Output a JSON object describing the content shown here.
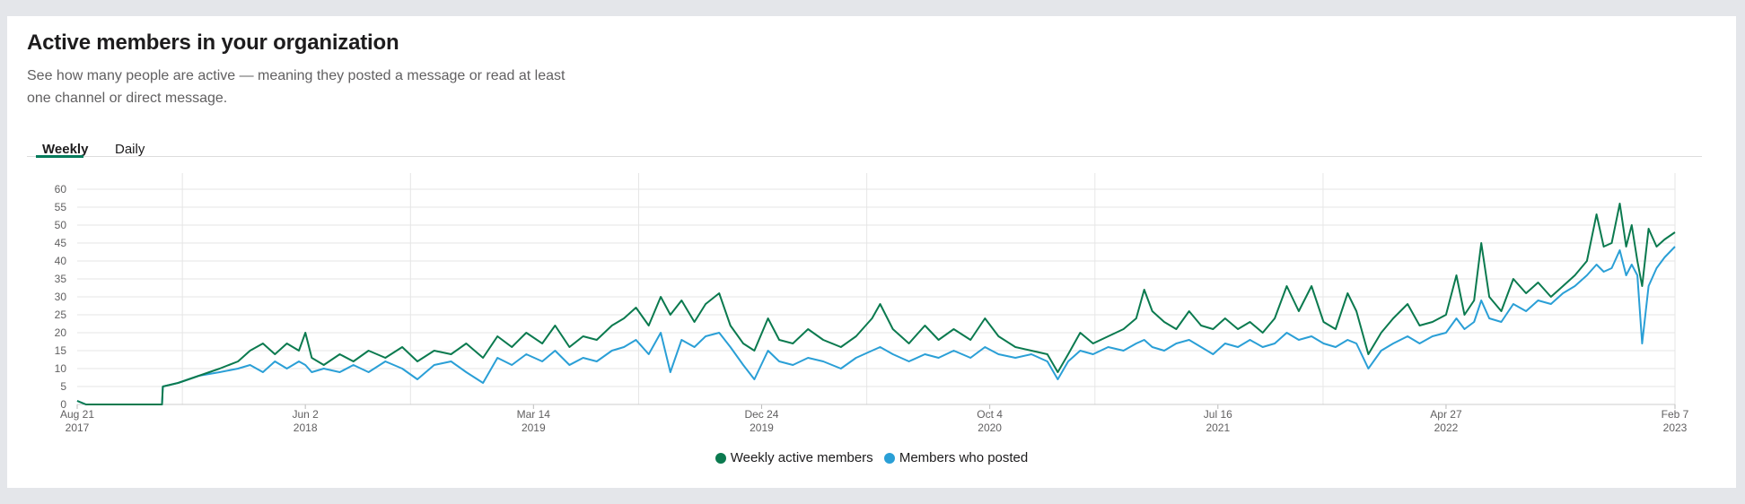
{
  "card": {
    "title": "Active members in your organization",
    "description": "See how many people are active — meaning they posted a message or read at least one channel or direct message."
  },
  "tabs": [
    {
      "label": "Weekly",
      "selected": true
    },
    {
      "label": "Daily",
      "selected": false
    }
  ],
  "colors": {
    "accent": "#007a5a",
    "series_green": "#0b7a4f",
    "series_blue": "#2a9fd6"
  },
  "chart_data": {
    "type": "line",
    "title": "",
    "xlabel": "",
    "ylabel": "",
    "ylim": [
      0,
      62
    ],
    "yticks": [
      0,
      5,
      10,
      15,
      20,
      25,
      30,
      35,
      40,
      45,
      50,
      55,
      60
    ],
    "xlim": [
      "2017-08-21",
      "2023-02-07"
    ],
    "xticks": [
      {
        "date": "2017-08-21",
        "line1": "Aug 21",
        "line2": "2017"
      },
      {
        "date": "2018-06-02",
        "line1": "Jun 2",
        "line2": "2018"
      },
      {
        "date": "2019-03-14",
        "line1": "Mar 14",
        "line2": "2019"
      },
      {
        "date": "2019-12-24",
        "line1": "Dec 24",
        "line2": "2019"
      },
      {
        "date": "2020-10-04",
        "line1": "Oct 4",
        "line2": "2020"
      },
      {
        "date": "2021-07-16",
        "line1": "Jul 16",
        "line2": "2021"
      },
      {
        "date": "2022-04-27",
        "line1": "Apr 27",
        "line2": "2022"
      },
      {
        "date": "2023-02-07",
        "line1": "Feb 7",
        "line2": "2023"
      }
    ],
    "grid": true,
    "legend_position": "bottom",
    "series": [
      {
        "name": "Weekly active members",
        "color": "#0b7a4f",
        "points": [
          [
            "2017-08-21",
            1
          ],
          [
            "2017-09-01",
            0
          ],
          [
            "2017-11-15",
            0
          ],
          [
            "2017-12-05",
            0
          ],
          [
            "2017-12-06",
            5
          ],
          [
            "2017-12-25",
            6
          ],
          [
            "2018-01-20",
            8
          ],
          [
            "2018-02-15",
            10
          ],
          [
            "2018-03-10",
            12
          ],
          [
            "2018-03-25",
            15
          ],
          [
            "2018-04-10",
            17
          ],
          [
            "2018-04-25",
            14
          ],
          [
            "2018-05-10",
            17
          ],
          [
            "2018-05-25",
            15
          ],
          [
            "2018-06-02",
            20
          ],
          [
            "2018-06-10",
            13
          ],
          [
            "2018-06-25",
            11
          ],
          [
            "2018-07-15",
            14
          ],
          [
            "2018-08-01",
            12
          ],
          [
            "2018-08-20",
            15
          ],
          [
            "2018-09-10",
            13
          ],
          [
            "2018-10-01",
            16
          ],
          [
            "2018-10-20",
            12
          ],
          [
            "2018-11-10",
            15
          ],
          [
            "2018-12-01",
            14
          ],
          [
            "2018-12-20",
            17
          ],
          [
            "2019-01-10",
            13
          ],
          [
            "2019-01-28",
            19
          ],
          [
            "2019-02-15",
            16
          ],
          [
            "2019-03-05",
            20
          ],
          [
            "2019-03-25",
            17
          ],
          [
            "2019-04-10",
            22
          ],
          [
            "2019-04-28",
            16
          ],
          [
            "2019-05-15",
            19
          ],
          [
            "2019-06-01",
            18
          ],
          [
            "2019-06-20",
            22
          ],
          [
            "2019-07-05",
            24
          ],
          [
            "2019-07-20",
            27
          ],
          [
            "2019-08-05",
            22
          ],
          [
            "2019-08-20",
            30
          ],
          [
            "2019-09-01",
            25
          ],
          [
            "2019-09-15",
            29
          ],
          [
            "2019-10-01",
            23
          ],
          [
            "2019-10-15",
            28
          ],
          [
            "2019-11-01",
            31
          ],
          [
            "2019-11-15",
            22
          ],
          [
            "2019-12-01",
            17
          ],
          [
            "2019-12-15",
            15
          ],
          [
            "2020-01-01",
            24
          ],
          [
            "2020-01-15",
            18
          ],
          [
            "2020-02-01",
            17
          ],
          [
            "2020-02-20",
            21
          ],
          [
            "2020-03-10",
            18
          ],
          [
            "2020-04-01",
            16
          ],
          [
            "2020-04-20",
            19
          ],
          [
            "2020-05-10",
            24
          ],
          [
            "2020-05-20",
            28
          ],
          [
            "2020-06-05",
            21
          ],
          [
            "2020-06-25",
            17
          ],
          [
            "2020-07-15",
            22
          ],
          [
            "2020-08-01",
            18
          ],
          [
            "2020-08-20",
            21
          ],
          [
            "2020-09-10",
            18
          ],
          [
            "2020-09-28",
            24
          ],
          [
            "2020-10-15",
            19
          ],
          [
            "2020-11-05",
            16
          ],
          [
            "2020-11-25",
            15
          ],
          [
            "2020-12-15",
            14
          ],
          [
            "2020-12-28",
            9
          ],
          [
            "2021-01-10",
            14
          ],
          [
            "2021-01-25",
            20
          ],
          [
            "2021-02-10",
            17
          ],
          [
            "2021-03-01",
            19
          ],
          [
            "2021-03-20",
            21
          ],
          [
            "2021-04-05",
            24
          ],
          [
            "2021-04-15",
            32
          ],
          [
            "2021-04-25",
            26
          ],
          [
            "2021-05-10",
            23
          ],
          [
            "2021-05-25",
            21
          ],
          [
            "2021-06-10",
            26
          ],
          [
            "2021-06-25",
            22
          ],
          [
            "2021-07-10",
            21
          ],
          [
            "2021-07-25",
            24
          ],
          [
            "2021-08-10",
            21
          ],
          [
            "2021-08-25",
            23
          ],
          [
            "2021-09-10",
            20
          ],
          [
            "2021-09-25",
            24
          ],
          [
            "2021-10-10",
            33
          ],
          [
            "2021-10-25",
            26
          ],
          [
            "2021-11-10",
            33
          ],
          [
            "2021-11-25",
            23
          ],
          [
            "2021-12-10",
            21
          ],
          [
            "2021-12-25",
            31
          ],
          [
            "2022-01-05",
            26
          ],
          [
            "2022-01-20",
            14
          ],
          [
            "2022-02-05",
            20
          ],
          [
            "2022-02-20",
            24
          ],
          [
            "2022-03-10",
            28
          ],
          [
            "2022-03-25",
            22
          ],
          [
            "2022-04-10",
            23
          ],
          [
            "2022-04-27",
            25
          ],
          [
            "2022-05-10",
            36
          ],
          [
            "2022-05-20",
            25
          ],
          [
            "2022-06-01",
            29
          ],
          [
            "2022-06-10",
            45
          ],
          [
            "2022-06-20",
            30
          ],
          [
            "2022-07-05",
            26
          ],
          [
            "2022-07-20",
            35
          ],
          [
            "2022-08-05",
            31
          ],
          [
            "2022-08-20",
            34
          ],
          [
            "2022-09-05",
            30
          ],
          [
            "2022-09-20",
            33
          ],
          [
            "2022-10-05",
            36
          ],
          [
            "2022-10-20",
            40
          ],
          [
            "2022-11-01",
            53
          ],
          [
            "2022-11-10",
            44
          ],
          [
            "2022-11-20",
            45
          ],
          [
            "2022-11-30",
            56
          ],
          [
            "2022-12-08",
            44
          ],
          [
            "2022-12-15",
            50
          ],
          [
            "2022-12-22",
            40
          ],
          [
            "2022-12-28",
            33
          ],
          [
            "2023-01-05",
            49
          ],
          [
            "2023-01-15",
            44
          ],
          [
            "2023-01-25",
            46
          ],
          [
            "2023-02-07",
            48
          ]
        ]
      },
      {
        "name": "Members who posted",
        "color": "#2a9fd6",
        "points": [
          [
            "2017-08-21",
            1
          ],
          [
            "2017-09-01",
            0
          ],
          [
            "2017-11-15",
            0
          ],
          [
            "2017-12-05",
            0
          ],
          [
            "2017-12-06",
            5
          ],
          [
            "2017-12-25",
            6
          ],
          [
            "2018-01-20",
            8
          ],
          [
            "2018-02-15",
            9
          ],
          [
            "2018-03-10",
            10
          ],
          [
            "2018-03-25",
            11
          ],
          [
            "2018-04-10",
            9
          ],
          [
            "2018-04-25",
            12
          ],
          [
            "2018-05-10",
            10
          ],
          [
            "2018-05-25",
            12
          ],
          [
            "2018-06-02",
            11
          ],
          [
            "2018-06-10",
            9
          ],
          [
            "2018-06-25",
            10
          ],
          [
            "2018-07-15",
            9
          ],
          [
            "2018-08-01",
            11
          ],
          [
            "2018-08-20",
            9
          ],
          [
            "2018-09-10",
            12
          ],
          [
            "2018-10-01",
            10
          ],
          [
            "2018-10-20",
            7
          ],
          [
            "2018-11-10",
            11
          ],
          [
            "2018-12-01",
            12
          ],
          [
            "2018-12-20",
            9
          ],
          [
            "2019-01-10",
            6
          ],
          [
            "2019-01-28",
            13
          ],
          [
            "2019-02-15",
            11
          ],
          [
            "2019-03-05",
            14
          ],
          [
            "2019-03-25",
            12
          ],
          [
            "2019-04-10",
            15
          ],
          [
            "2019-04-28",
            11
          ],
          [
            "2019-05-15",
            13
          ],
          [
            "2019-06-01",
            12
          ],
          [
            "2019-06-20",
            15
          ],
          [
            "2019-07-05",
            16
          ],
          [
            "2019-07-20",
            18
          ],
          [
            "2019-08-05",
            14
          ],
          [
            "2019-08-20",
            20
          ],
          [
            "2019-09-01",
            9
          ],
          [
            "2019-09-15",
            18
          ],
          [
            "2019-10-01",
            16
          ],
          [
            "2019-10-15",
            19
          ],
          [
            "2019-11-01",
            20
          ],
          [
            "2019-11-15",
            16
          ],
          [
            "2019-12-01",
            11
          ],
          [
            "2019-12-15",
            7
          ],
          [
            "2020-01-01",
            15
          ],
          [
            "2020-01-15",
            12
          ],
          [
            "2020-02-01",
            11
          ],
          [
            "2020-02-20",
            13
          ],
          [
            "2020-03-10",
            12
          ],
          [
            "2020-04-01",
            10
          ],
          [
            "2020-04-20",
            13
          ],
          [
            "2020-05-10",
            15
          ],
          [
            "2020-05-20",
            16
          ],
          [
            "2020-06-05",
            14
          ],
          [
            "2020-06-25",
            12
          ],
          [
            "2020-07-15",
            14
          ],
          [
            "2020-08-01",
            13
          ],
          [
            "2020-08-20",
            15
          ],
          [
            "2020-09-10",
            13
          ],
          [
            "2020-09-28",
            16
          ],
          [
            "2020-10-15",
            14
          ],
          [
            "2020-11-05",
            13
          ],
          [
            "2020-11-25",
            14
          ],
          [
            "2020-12-15",
            12
          ],
          [
            "2020-12-28",
            7
          ],
          [
            "2021-01-10",
            12
          ],
          [
            "2021-01-25",
            15
          ],
          [
            "2021-02-10",
            14
          ],
          [
            "2021-03-01",
            16
          ],
          [
            "2021-03-20",
            15
          ],
          [
            "2021-04-05",
            17
          ],
          [
            "2021-04-15",
            18
          ],
          [
            "2021-04-25",
            16
          ],
          [
            "2021-05-10",
            15
          ],
          [
            "2021-05-25",
            17
          ],
          [
            "2021-06-10",
            18
          ],
          [
            "2021-06-25",
            16
          ],
          [
            "2021-07-10",
            14
          ],
          [
            "2021-07-25",
            17
          ],
          [
            "2021-08-10",
            16
          ],
          [
            "2021-08-25",
            18
          ],
          [
            "2021-09-10",
            16
          ],
          [
            "2021-09-25",
            17
          ],
          [
            "2021-10-10",
            20
          ],
          [
            "2021-10-25",
            18
          ],
          [
            "2021-11-10",
            19
          ],
          [
            "2021-11-25",
            17
          ],
          [
            "2021-12-10",
            16
          ],
          [
            "2021-12-25",
            18
          ],
          [
            "2022-01-05",
            17
          ],
          [
            "2022-01-20",
            10
          ],
          [
            "2022-02-05",
            15
          ],
          [
            "2022-02-20",
            17
          ],
          [
            "2022-03-10",
            19
          ],
          [
            "2022-03-25",
            17
          ],
          [
            "2022-04-10",
            19
          ],
          [
            "2022-04-27",
            20
          ],
          [
            "2022-05-10",
            24
          ],
          [
            "2022-05-20",
            21
          ],
          [
            "2022-06-01",
            23
          ],
          [
            "2022-06-10",
            29
          ],
          [
            "2022-06-20",
            24
          ],
          [
            "2022-07-05",
            23
          ],
          [
            "2022-07-20",
            28
          ],
          [
            "2022-08-05",
            26
          ],
          [
            "2022-08-20",
            29
          ],
          [
            "2022-09-05",
            28
          ],
          [
            "2022-09-20",
            31
          ],
          [
            "2022-10-05",
            33
          ],
          [
            "2022-10-20",
            36
          ],
          [
            "2022-11-01",
            39
          ],
          [
            "2022-11-10",
            37
          ],
          [
            "2022-11-20",
            38
          ],
          [
            "2022-11-30",
            43
          ],
          [
            "2022-12-08",
            36
          ],
          [
            "2022-12-15",
            39
          ],
          [
            "2022-12-22",
            36
          ],
          [
            "2022-12-28",
            17
          ],
          [
            "2023-01-05",
            33
          ],
          [
            "2023-01-15",
            38
          ],
          [
            "2023-01-25",
            41
          ],
          [
            "2023-02-07",
            44
          ]
        ]
      }
    ]
  }
}
